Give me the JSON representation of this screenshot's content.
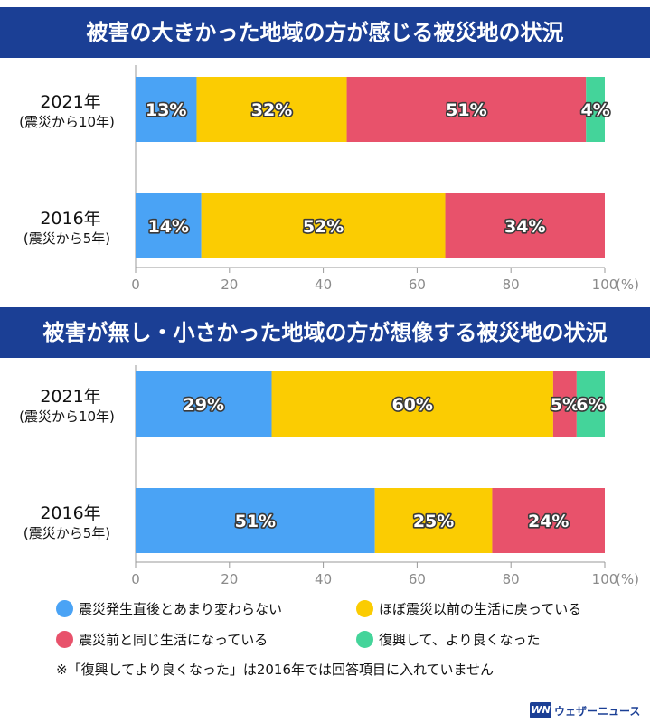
{
  "colors": {
    "blue": "#4aa3f5",
    "yellow": "#fbcc02",
    "red": "#e8526b",
    "green": "#44d49a",
    "title_bg": "#1b3f95"
  },
  "chart_data": [
    {
      "type": "bar",
      "orientation": "horizontal-stacked",
      "title": "被害の大きかった地域の方が感じる被災地の状況",
      "categories": [
        {
          "label": "2021年",
          "sublabel": "(震災から10年)"
        },
        {
          "label": "2016年",
          "sublabel": "(震災から5年)"
        }
      ],
      "series": [
        {
          "name": "震災発生直後とあまり変わらない",
          "color": "#4aa3f5",
          "values": [
            13,
            14
          ]
        },
        {
          "name": "ほぼ震災以前の生活に戻っている",
          "color": "#fbcc02",
          "values": [
            32,
            52
          ]
        },
        {
          "name": "震災前と同じ生活になっている",
          "color": "#e8526b",
          "values": [
            51,
            34
          ]
        },
        {
          "name": "復興して、より良くなった",
          "color": "#44d49a",
          "values": [
            4,
            null
          ]
        }
      ],
      "xlim": [
        0,
        100
      ],
      "xticks": [
        "0",
        "20",
        "40",
        "60",
        "80",
        "100"
      ],
      "xunit": "(%)",
      "grid": false
    },
    {
      "type": "bar",
      "orientation": "horizontal-stacked",
      "title": "被害が無し・小さかった地域の方が想像する被災地の状況",
      "categories": [
        {
          "label": "2021年",
          "sublabel": "(震災から10年)"
        },
        {
          "label": "2016年",
          "sublabel": "(震災から5年)"
        }
      ],
      "series": [
        {
          "name": "震災発生直後とあまり変わらない",
          "color": "#4aa3f5",
          "values": [
            29,
            51
          ]
        },
        {
          "name": "ほぼ震災以前の生活に戻っている",
          "color": "#fbcc02",
          "values": [
            60,
            25
          ]
        },
        {
          "name": "震災前と同じ生活になっている",
          "color": "#e8526b",
          "values": [
            5,
            24
          ]
        },
        {
          "name": "復興して、より良くなった",
          "color": "#44d49a",
          "values": [
            6,
            null
          ]
        }
      ],
      "xlim": [
        0,
        100
      ],
      "xticks": [
        "0",
        "20",
        "40",
        "60",
        "80",
        "100"
      ],
      "xunit": "(%)",
      "grid": false
    }
  ],
  "legend": [
    {
      "label": "震災発生直後とあまり変わらない",
      "color": "#4aa3f5"
    },
    {
      "label": "ほぼ震災以前の生活に戻っている",
      "color": "#fbcc02"
    },
    {
      "label": "震災前と同じ生活になっている",
      "color": "#e8526b"
    },
    {
      "label": "復興して、より良くなった",
      "color": "#44d49a"
    }
  ],
  "note": "※「復興してより良くなった」は2016年では回答項目に入れていません",
  "logo": {
    "mark": "WN",
    "text": "ウェザーニュース"
  }
}
